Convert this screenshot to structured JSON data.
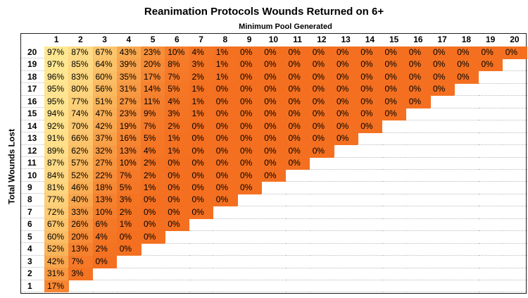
{
  "title": "Reanimation Protocols Wounds Returned on 6+",
  "table": {
    "column_title": "Minimum Pool Generated",
    "row_title": "Total Wounds Lost",
    "columns": [
      "1",
      "2",
      "3",
      "4",
      "5",
      "6",
      "7",
      "8",
      "9",
      "10",
      "11",
      "12",
      "13",
      "14",
      "15",
      "16",
      "17",
      "18",
      "19",
      "20"
    ],
    "rows": [
      {
        "label": "20",
        "cells": [
          "97%",
          "87%",
          "67%",
          "43%",
          "23%",
          "10%",
          "4%",
          "1%",
          "0%",
          "0%",
          "0%",
          "0%",
          "0%",
          "0%",
          "0%",
          "0%",
          "0%",
          "0%",
          "0%",
          "0%"
        ]
      },
      {
        "label": "19",
        "cells": [
          "97%",
          "85%",
          "64%",
          "39%",
          "20%",
          "8%",
          "3%",
          "1%",
          "0%",
          "0%",
          "0%",
          "0%",
          "0%",
          "0%",
          "0%",
          "0%",
          "0%",
          "0%",
          "0%"
        ]
      },
      {
        "label": "18",
        "cells": [
          "96%",
          "83%",
          "60%",
          "35%",
          "17%",
          "7%",
          "2%",
          "1%",
          "0%",
          "0%",
          "0%",
          "0%",
          "0%",
          "0%",
          "0%",
          "0%",
          "0%",
          "0%"
        ]
      },
      {
        "label": "17",
        "cells": [
          "95%",
          "80%",
          "56%",
          "31%",
          "14%",
          "5%",
          "1%",
          "0%",
          "0%",
          "0%",
          "0%",
          "0%",
          "0%",
          "0%",
          "0%",
          "0%",
          "0%"
        ]
      },
      {
        "label": "16",
        "cells": [
          "95%",
          "77%",
          "51%",
          "27%",
          "11%",
          "4%",
          "1%",
          "0%",
          "0%",
          "0%",
          "0%",
          "0%",
          "0%",
          "0%",
          "0%",
          "0%"
        ]
      },
      {
        "label": "15",
        "cells": [
          "94%",
          "74%",
          "47%",
          "23%",
          "9%",
          "3%",
          "1%",
          "0%",
          "0%",
          "0%",
          "0%",
          "0%",
          "0%",
          "0%",
          "0%"
        ]
      },
      {
        "label": "14",
        "cells": [
          "92%",
          "70%",
          "42%",
          "19%",
          "7%",
          "2%",
          "0%",
          "0%",
          "0%",
          "0%",
          "0%",
          "0%",
          "0%",
          "0%"
        ]
      },
      {
        "label": "13",
        "cells": [
          "91%",
          "66%",
          "37%",
          "16%",
          "5%",
          "1%",
          "0%",
          "0%",
          "0%",
          "0%",
          "0%",
          "0%",
          "0%"
        ]
      },
      {
        "label": "12",
        "cells": [
          "89%",
          "62%",
          "32%",
          "13%",
          "4%",
          "1%",
          "0%",
          "0%",
          "0%",
          "0%",
          "0%",
          "0%"
        ]
      },
      {
        "label": "11",
        "cells": [
          "87%",
          "57%",
          "27%",
          "10%",
          "2%",
          "0%",
          "0%",
          "0%",
          "0%",
          "0%",
          "0%"
        ]
      },
      {
        "label": "10",
        "cells": [
          "84%",
          "52%",
          "22%",
          "7%",
          "2%",
          "0%",
          "0%",
          "0%",
          "0%",
          "0%"
        ]
      },
      {
        "label": "9",
        "cells": [
          "81%",
          "46%",
          "18%",
          "5%",
          "1%",
          "0%",
          "0%",
          "0%",
          "0%"
        ]
      },
      {
        "label": "8",
        "cells": [
          "77%",
          "40%",
          "13%",
          "3%",
          "0%",
          "0%",
          "0%",
          "0%"
        ]
      },
      {
        "label": "7",
        "cells": [
          "72%",
          "33%",
          "10%",
          "2%",
          "0%",
          "0%",
          "0%"
        ]
      },
      {
        "label": "6",
        "cells": [
          "67%",
          "26%",
          "6%",
          "1%",
          "0%",
          "0%"
        ]
      },
      {
        "label": "5",
        "cells": [
          "60%",
          "20%",
          "4%",
          "0%",
          "0%"
        ]
      },
      {
        "label": "4",
        "cells": [
          "52%",
          "13%",
          "2%",
          "0%"
        ]
      },
      {
        "label": "3",
        "cells": [
          "42%",
          "7%",
          "0%"
        ]
      },
      {
        "label": "2",
        "cells": [
          "31%",
          "3%"
        ]
      },
      {
        "label": "1",
        "cells": [
          "17%"
        ]
      }
    ]
  }
}
